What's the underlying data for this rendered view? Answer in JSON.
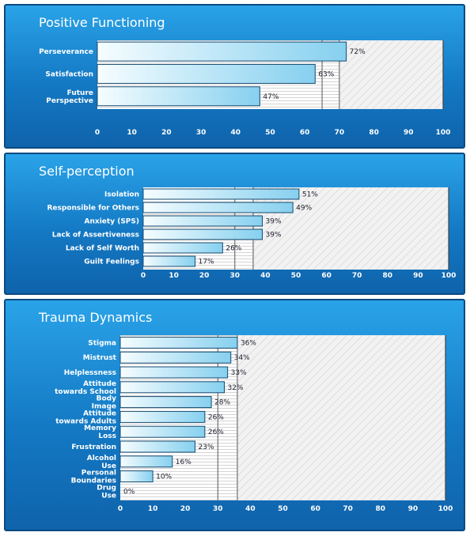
{
  "chart_data": [
    {
      "type": "bar",
      "orientation": "horizontal",
      "title": "Positive Functioning",
      "categories": [
        [
          "Perseverance"
        ],
        [
          "Satisfaction"
        ],
        [
          "Future",
          "Perspective"
        ]
      ],
      "values": [
        72,
        63,
        47
      ],
      "value_labels": [
        "72%",
        "63%",
        "47%"
      ],
      "xlim": [
        0,
        100
      ],
      "x_ticks": [
        0,
        10,
        20,
        30,
        40,
        50,
        60,
        70,
        80,
        90,
        100
      ],
      "reference_band": [
        65,
        70
      ],
      "grid": false,
      "colors": {
        "bar_light": "#f4fcff",
        "bar_dark": "#8fd6f2",
        "bar_border": "#17496e"
      }
    },
    {
      "type": "bar",
      "orientation": "horizontal",
      "title": "Self-perception",
      "categories": [
        [
          "Isolation"
        ],
        [
          "Responsible for Others"
        ],
        [
          "Anxiety (SPS)"
        ],
        [
          "Lack of Assertiveness"
        ],
        [
          "Lack of Self Worth"
        ],
        [
          "Guilt Feelings"
        ]
      ],
      "values": [
        51,
        49,
        39,
        39,
        26,
        17
      ],
      "value_labels": [
        "51%",
        "49%",
        "39%",
        "39%",
        "26%",
        "17%"
      ],
      "xlim": [
        0,
        100
      ],
      "x_ticks": [
        0,
        10,
        20,
        30,
        40,
        50,
        60,
        70,
        80,
        90,
        100
      ],
      "reference_band": [
        30,
        36
      ],
      "grid": false,
      "colors": {
        "bar_light": "#f4fcff",
        "bar_dark": "#8fd6f2",
        "bar_border": "#17496e"
      }
    },
    {
      "type": "bar",
      "orientation": "horizontal",
      "title": "Trauma Dynamics",
      "categories": [
        [
          "Stigma"
        ],
        [
          "Mistrust"
        ],
        [
          "Helplessness"
        ],
        [
          "Attitude",
          "towards School"
        ],
        [
          "Body",
          "Image"
        ],
        [
          "Attitude",
          "towards Adults"
        ],
        [
          "Memory",
          "Loss"
        ],
        [
          "Frustration"
        ],
        [
          "Alcohol",
          "Use"
        ],
        [
          "Personal",
          "Boundaries"
        ],
        [
          "Drug",
          "Use"
        ]
      ],
      "values": [
        36,
        34,
        33,
        32,
        28,
        26,
        26,
        23,
        16,
        10,
        0
      ],
      "value_labels": [
        "36%",
        "34%",
        "33%",
        "32%",
        "28%",
        "26%",
        "26%",
        "23%",
        "16%",
        "10%",
        "0%"
      ],
      "xlim": [
        0,
        100
      ],
      "x_ticks": [
        0,
        10,
        20,
        30,
        40,
        50,
        60,
        70,
        80,
        90,
        100
      ],
      "reference_band": [
        30,
        36
      ],
      "grid": false,
      "colors": {
        "bar_light": "#f4fcff",
        "bar_dark": "#8fd6f2",
        "bar_border": "#17496e"
      }
    }
  ]
}
